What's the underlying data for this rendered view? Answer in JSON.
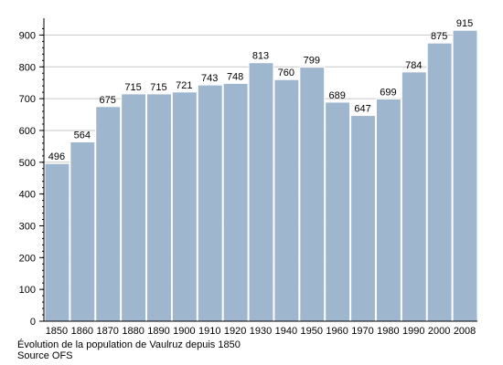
{
  "chart_data": {
    "type": "bar",
    "categories": [
      "1850",
      "1860",
      "1870",
      "1880",
      "1890",
      "1900",
      "1910",
      "1920",
      "1930",
      "1940",
      "1950",
      "1960",
      "1970",
      "1980",
      "1990",
      "2000",
      "2008"
    ],
    "values": [
      496,
      564,
      675,
      715,
      715,
      721,
      743,
      748,
      813,
      760,
      799,
      689,
      647,
      699,
      784,
      875,
      915
    ],
    "data_labels": [
      "496",
      "564",
      "675",
      "715",
      "715",
      "721",
      "743",
      "748",
      "813",
      "760",
      "799",
      "689",
      "647",
      "699",
      "784",
      "875",
      "915"
    ],
    "yticks": [
      "0",
      "100",
      "200",
      "300",
      "400",
      "500",
      "600",
      "700",
      "800",
      "900"
    ],
    "ylim": [
      0,
      950
    ],
    "grid": true,
    "bar_color": "#9fb6cf",
    "bar_edge_color": "#ffffff",
    "grid_color": "#c8c8c8"
  },
  "captions": {
    "line1": "Évolution de la population de Vaulruz depuis 1850",
    "line2": "Source OFS"
  }
}
